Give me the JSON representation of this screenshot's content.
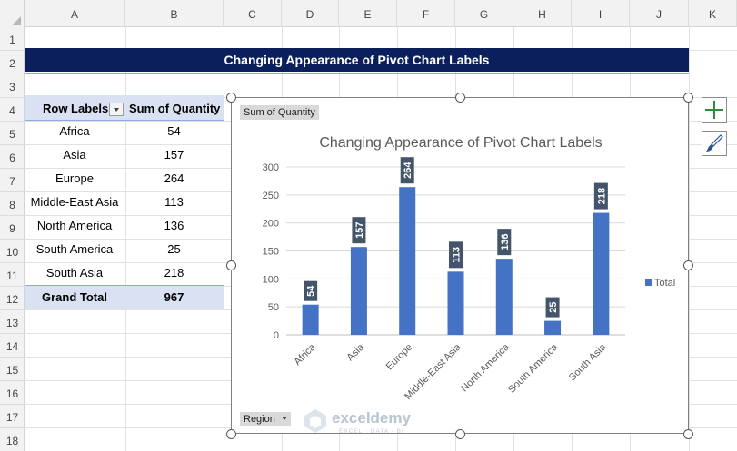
{
  "columns": [
    "A",
    "B",
    "C",
    "D",
    "E",
    "F",
    "G",
    "H",
    "I",
    "J",
    "K"
  ],
  "rows": [
    "1",
    "2",
    "3",
    "4",
    "5",
    "6",
    "7",
    "8",
    "9",
    "10",
    "11",
    "12",
    "13",
    "14",
    "15",
    "16",
    "17",
    "18"
  ],
  "banner": {
    "title": "Changing Appearance of Pivot Chart Labels"
  },
  "pivot": {
    "header_labels": "Row Labels",
    "header_values": "Sum of Quantity",
    "rows": [
      {
        "label": "Africa",
        "value": "54"
      },
      {
        "label": "Asia",
        "value": "157"
      },
      {
        "label": "Europe",
        "value": "264"
      },
      {
        "label": "Middle-East Asia",
        "value": "113"
      },
      {
        "label": "North America",
        "value": "136"
      },
      {
        "label": "South America",
        "value": "25"
      },
      {
        "label": "South Asia",
        "value": "218"
      }
    ],
    "total_label": "Grand Total",
    "total_value": "967"
  },
  "chart_buttons": {
    "value_field": "Sum of Quantity",
    "axis_field": "Region"
  },
  "side_buttons": {
    "add_icon": "plus-icon",
    "style_icon": "paintbrush-icon"
  },
  "watermark": {
    "name": "exceldemy",
    "tagline": "EXCEL · DATA · BI"
  },
  "chart_data": {
    "type": "bar",
    "title": "Changing Appearance of Pivot Chart Labels",
    "categories": [
      "Africa",
      "Asia",
      "Europe",
      "Middle-East Asia",
      "North America",
      "South America",
      "South Asia"
    ],
    "series": [
      {
        "name": "Total",
        "values": [
          54,
          157,
          264,
          113,
          136,
          25,
          218
        ],
        "color": "#4472c4"
      }
    ],
    "yticks": [
      0,
      50,
      100,
      150,
      200,
      250,
      300
    ],
    "ylim": [
      0,
      300
    ],
    "grid": true,
    "legend": "right",
    "data_label_bg": "#44546a"
  }
}
